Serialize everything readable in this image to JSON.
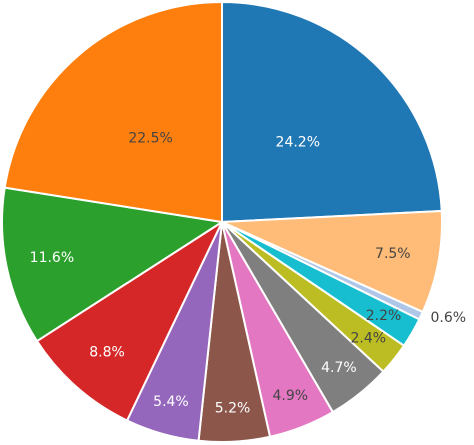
{
  "chart_data": {
    "type": "pie",
    "title": "",
    "legend": "none",
    "direction": "clockwise",
    "start": "12 o'clock",
    "slices": [
      {
        "label": "24.2%",
        "value": 24.2,
        "color": "#1f77b4",
        "text_color": "#ffffff",
        "text_placement": "inside"
      },
      {
        "label": "7.5%",
        "value": 7.5,
        "color": "#ffbb78",
        "text_color": "#444444",
        "text_placement": "inside"
      },
      {
        "label": "0.6%",
        "value": 0.6,
        "color": "#aec7e8",
        "text_color": "#444444",
        "text_placement": "outside"
      },
      {
        "label": "2.2%",
        "value": 2.2,
        "color": "#17becf",
        "text_color": "#444444",
        "text_placement": "inside"
      },
      {
        "label": "2.4%",
        "value": 2.4,
        "color": "#bcbd22",
        "text_color": "#444444",
        "text_placement": "inside"
      },
      {
        "label": "4.7%",
        "value": 4.7,
        "color": "#7f7f7f",
        "text_color": "#ffffff",
        "text_placement": "inside"
      },
      {
        "label": "4.9%",
        "value": 4.9,
        "color": "#e377c2",
        "text_color": "#444444",
        "text_placement": "inside"
      },
      {
        "label": "5.2%",
        "value": 5.2,
        "color": "#8c564b",
        "text_color": "#ffffff",
        "text_placement": "inside"
      },
      {
        "label": "5.4%",
        "value": 5.4,
        "color": "#9467bd",
        "text_color": "#ffffff",
        "text_placement": "inside"
      },
      {
        "label": "8.8%",
        "value": 8.8,
        "color": "#d62728",
        "text_color": "#ffffff",
        "text_placement": "inside"
      },
      {
        "label": "11.6%",
        "value": 11.6,
        "color": "#2ca02c",
        "text_color": "#ffffff",
        "text_placement": "inside"
      },
      {
        "label": "22.5%",
        "value": 22.5,
        "color": "#ff7f0e",
        "text_color": "#444444",
        "text_placement": "inside"
      }
    ]
  }
}
